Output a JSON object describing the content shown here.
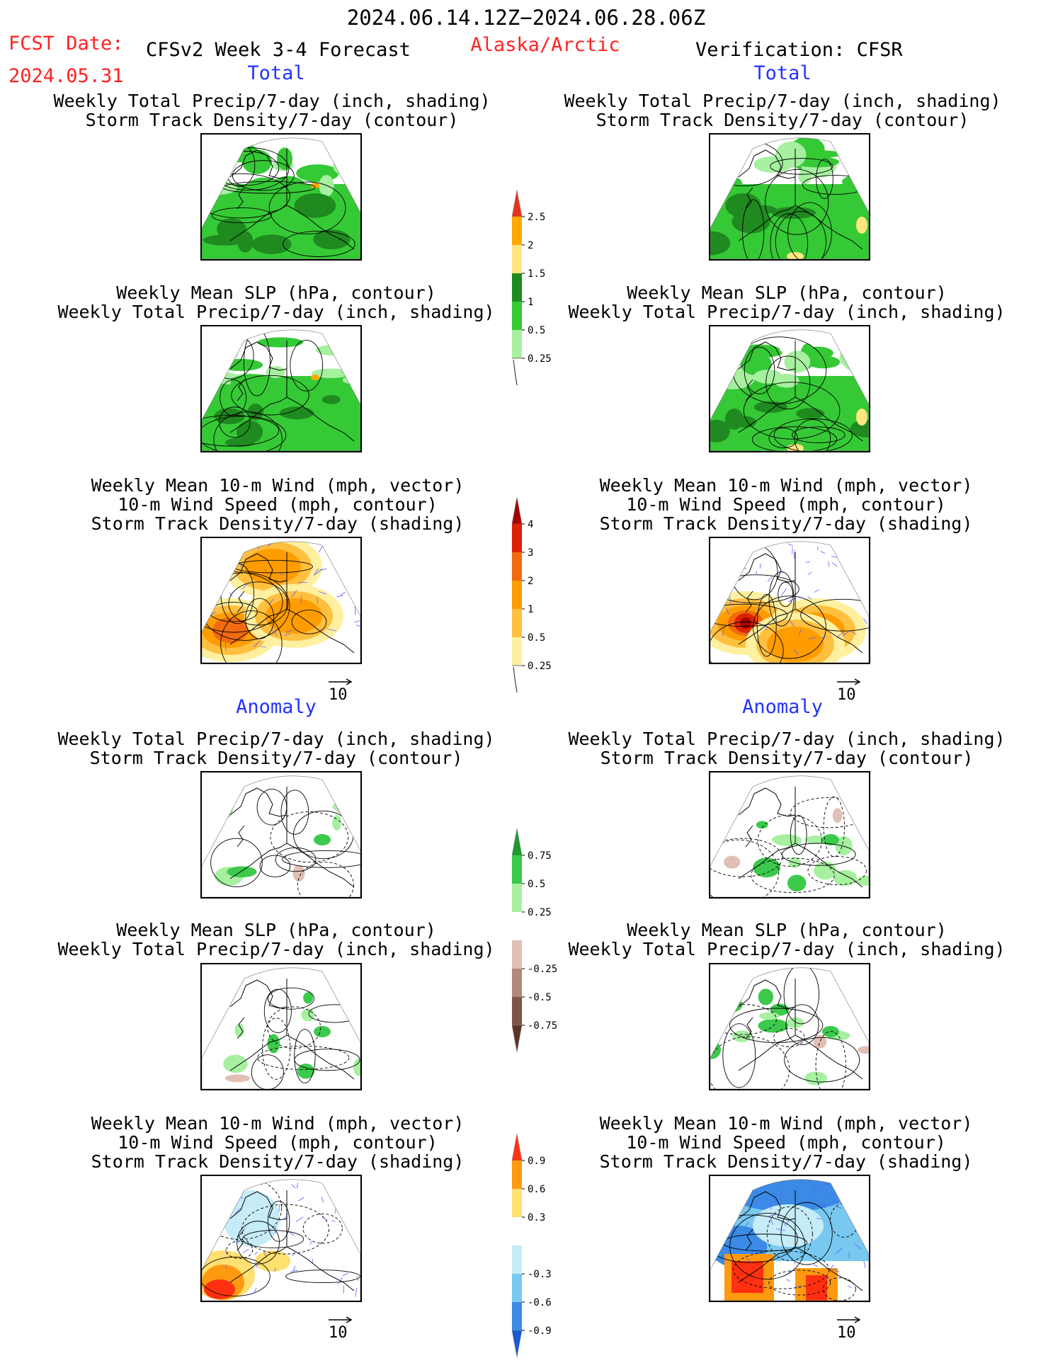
{
  "header": {
    "date_range": "2024.06.14.12Z−2024.06.28.06Z",
    "fcst_label": "FCST Date:",
    "fcst_date": "2024.05.31",
    "forecast_title": "CFSv2 Week 3-4 Forecast",
    "region": "Alaska/Arctic",
    "verification": "Verification: CFSR"
  },
  "sections": {
    "total_left": "Total",
    "total_right": "Total",
    "anomaly_left": "Anomaly",
    "anomaly_right": "Anomaly"
  },
  "panel_titles": {
    "precip_storm": [
      "Weekly Total Precip/7-day (inch, shading)",
      "Storm Track Density/7-day (contour)"
    ],
    "slp_precip": [
      "Weekly Mean SLP (hPa, contour)",
      "Weekly Total Precip/7-day (inch, shading)"
    ],
    "wind_storm": [
      "Weekly Mean 10-m Wind (mph, vector)",
      "10-m Wind Speed (mph, contour)",
      "Storm Track Density/7-day (shading)"
    ]
  },
  "vector_reference": "10",
  "colorbars": {
    "precip_total": {
      "labels": [
        "2.5",
        "2",
        "1.5",
        "1",
        "0.5",
        "0.25"
      ],
      "colors": [
        "#e8331f",
        "#ffa800",
        "#ffe680",
        "#1f8a1f",
        "#36c936",
        "#a6f0a0"
      ]
    },
    "storm_total": {
      "labels": [
        "4",
        "3",
        "2",
        "1",
        "0.5",
        "0.25"
      ],
      "colors": [
        "#a40000",
        "#dd2200",
        "#f26a10",
        "#ff9d00",
        "#ffc040",
        "#fff0a0"
      ]
    },
    "precip_anom": {
      "labels": [
        "0.75",
        "0.5",
        "0.25",
        "-0.25",
        "-0.5",
        "-0.75"
      ],
      "colors": [
        "#1a9a2a",
        "#3cc94c",
        "#a6f0a0",
        "#ffffff",
        "#e0c0b4",
        "#b0887a",
        "#805448",
        "#5a3528"
      ]
    },
    "storm_anom": {
      "labels": [
        "0.9",
        "0.6",
        "0.3",
        "-0.3",
        "-0.6",
        "-0.9"
      ],
      "colors": [
        "#ff3010",
        "#ff9a10",
        "#ffe070",
        "#ffffff",
        "#c6ecf8",
        "#78c8f0",
        "#3a8ae6",
        "#1a5ad6"
      ]
    }
  },
  "panels": [
    {
      "id": "tl1",
      "field": "precip_total",
      "column": "forecast"
    },
    {
      "id": "tr1",
      "field": "precip_total",
      "column": "verification"
    },
    {
      "id": "tl2",
      "field": "precip_total",
      "column": "forecast"
    },
    {
      "id": "tr2",
      "field": "precip_total",
      "column": "verification"
    },
    {
      "id": "tl3",
      "field": "storm_total",
      "column": "forecast"
    },
    {
      "id": "tr3",
      "field": "storm_total",
      "column": "verification"
    },
    {
      "id": "al1",
      "field": "precip_anom",
      "column": "forecast"
    },
    {
      "id": "ar1",
      "field": "precip_anom",
      "column": "verification"
    },
    {
      "id": "al2",
      "field": "precip_anom",
      "column": "forecast"
    },
    {
      "id": "ar2",
      "field": "precip_anom",
      "column": "verification"
    },
    {
      "id": "al3",
      "field": "storm_anom",
      "column": "forecast"
    },
    {
      "id": "ar3",
      "field": "storm_anom",
      "column": "verification"
    }
  ]
}
